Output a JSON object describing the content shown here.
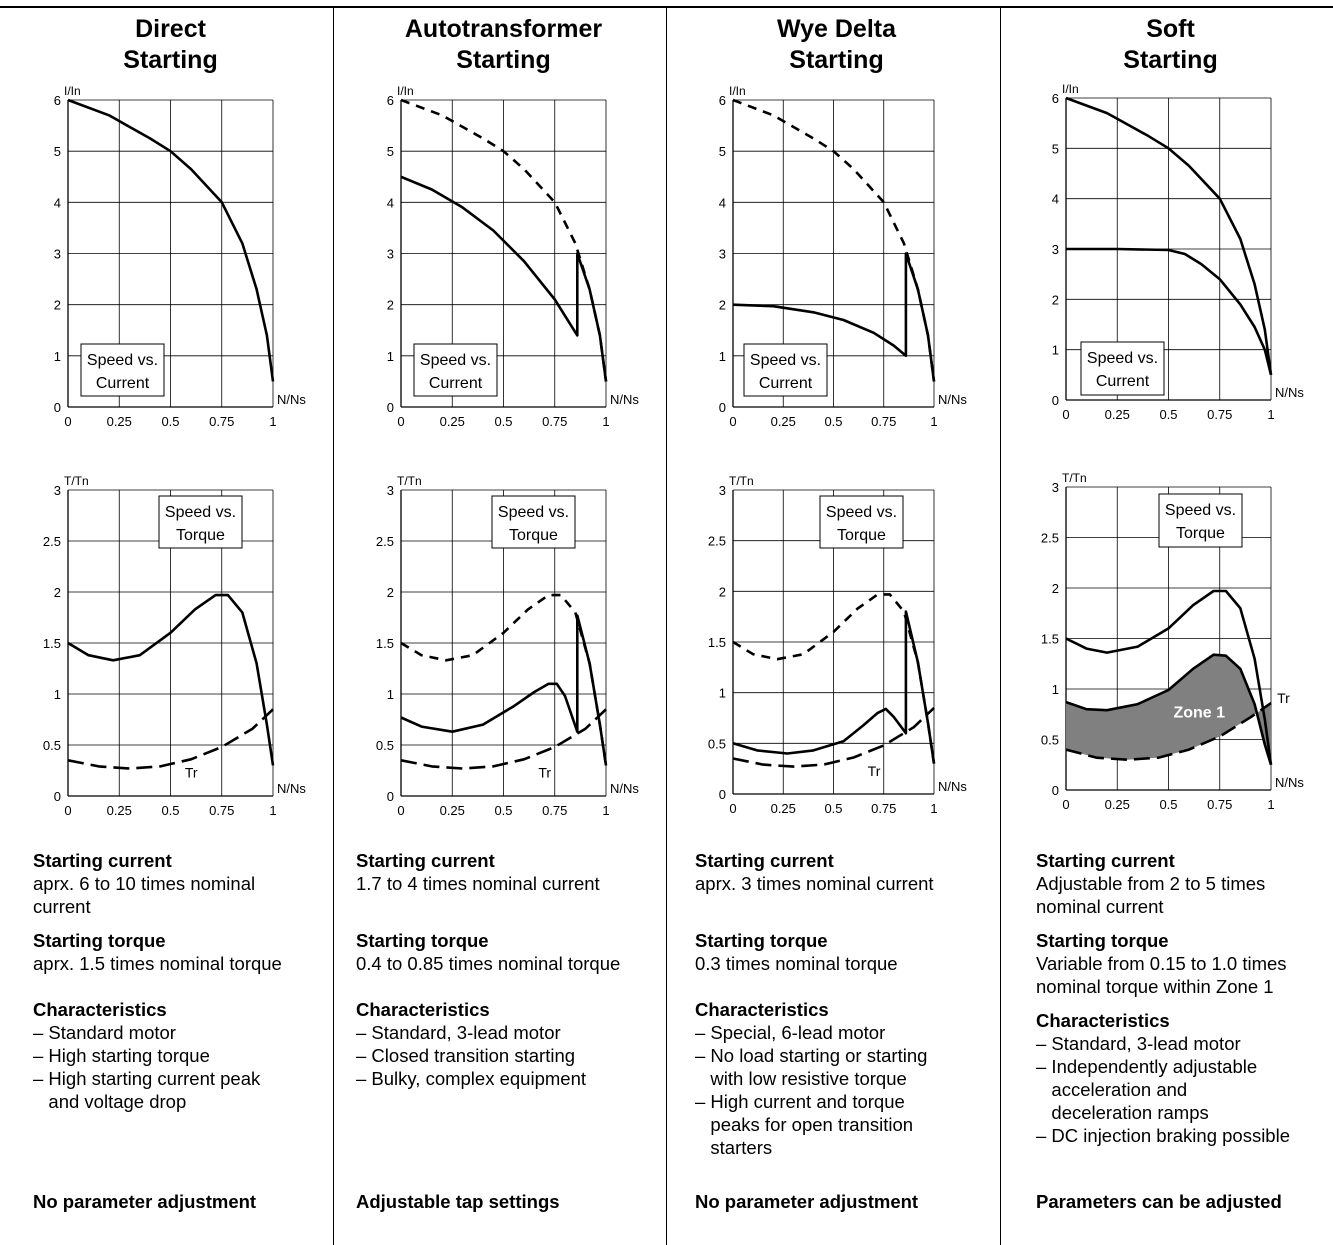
{
  "columns": [
    {
      "title": [
        "Direct",
        "Starting"
      ],
      "current": "Starting current",
      "current_text": [
        "aprx. 6 to 10 times nominal",
        "current"
      ],
      "torque": "Starting torque",
      "torque_text": [
        "aprx. 1.5 times nominal torque"
      ],
      "char": "Characteristics",
      "char_text": [
        "– Standard motor",
        "– High starting torque",
        "– High starting current peak",
        "   and voltage drop"
      ],
      "footer": "No parameter adjustment"
    },
    {
      "title": [
        "Autotransformer",
        "Starting"
      ],
      "current": "Starting current",
      "current_text": [
        "1.7 to 4 times nominal current"
      ],
      "torque": "Starting torque",
      "torque_text": [
        "0.4 to 0.85 times nominal torque"
      ],
      "char": "Characteristics",
      "char_text": [
        "– Standard, 3-lead motor",
        "– Closed transition starting",
        "– Bulky, complex equipment"
      ],
      "footer": "Adjustable tap settings"
    },
    {
      "title": [
        "Wye Delta",
        "Starting"
      ],
      "current": "Starting current",
      "current_text": [
        "aprx. 3 times nominal current"
      ],
      "torque": "Starting torque",
      "torque_text": [
        "0.3 times nominal torque"
      ],
      "char": "Characteristics",
      "char_text": [
        "– Special, 6-lead motor",
        "– No load starting or starting",
        "   with low resistive torque",
        "– High current and torque",
        "   peaks for open transition",
        "   starters"
      ],
      "footer": "No parameter adjustment"
    },
    {
      "title": [
        "Soft",
        "Starting"
      ],
      "current": "Starting current",
      "current_text": [
        "Adjustable from 2 to 5 times",
        "nominal current"
      ],
      "torque": "Starting torque",
      "torque_text": [
        "Variable from 0.15 to 1.0 times",
        "nominal torque within Zone 1"
      ],
      "char": "Characteristics",
      "char_text": [
        "– Standard, 3-lead motor",
        "– Independently adjustable",
        "   acceleration and",
        "   deceleration ramps",
        "– DC injection braking possible"
      ],
      "footer": "Parameters can be adjusted"
    }
  ],
  "chart_data": [
    {
      "type": "line",
      "chart": "Direct - current",
      "ylabel": "I/In",
      "xlabel": "N/Ns",
      "box_label": [
        "Speed vs.",
        "Current"
      ],
      "xlim": [
        0,
        1
      ],
      "ylim": [
        0,
        6
      ],
      "xticks": [
        "0",
        "0.25",
        "0.5",
        "0.75",
        "1"
      ],
      "yticks": [
        "0",
        "1",
        "2",
        "3",
        "4",
        "5",
        "6"
      ],
      "series": [
        {
          "style": "solid",
          "x": [
            0,
            0.2,
            0.4,
            0.5,
            0.6,
            0.75,
            0.85,
            0.92,
            0.97,
            1.0
          ],
          "y": [
            6,
            5.7,
            5.25,
            5.0,
            4.65,
            4.0,
            3.2,
            2.3,
            1.4,
            0.5
          ]
        }
      ]
    },
    {
      "type": "line",
      "chart": "Direct - torque",
      "ylabel": "T/Tn",
      "xlabel": "N/Ns",
      "box_label": [
        "Speed vs.",
        "Torque"
      ],
      "xlim": [
        0,
        1
      ],
      "ylim": [
        0,
        3
      ],
      "xticks": [
        "0",
        "0.25",
        "0.5",
        "0.75",
        "1"
      ],
      "yticks": [
        "0",
        "0.5",
        "1",
        "1.5",
        "2",
        "2.5",
        "3"
      ],
      "annotations": [
        {
          "text": "Tr",
          "x": 0.57,
          "y": 0.18
        }
      ],
      "series": [
        {
          "style": "solid",
          "x": [
            0,
            0.1,
            0.22,
            0.35,
            0.5,
            0.62,
            0.72,
            0.78,
            0.85,
            0.92,
            0.97,
            1.0
          ],
          "y": [
            1.5,
            1.38,
            1.33,
            1.38,
            1.6,
            1.83,
            1.97,
            1.97,
            1.8,
            1.3,
            0.7,
            0.3
          ]
        },
        {
          "style": "longdash",
          "x": [
            0,
            0.15,
            0.3,
            0.45,
            0.6,
            0.75,
            0.9,
            1.0
          ],
          "y": [
            0.35,
            0.29,
            0.27,
            0.29,
            0.36,
            0.48,
            0.66,
            0.85
          ]
        }
      ]
    },
    {
      "type": "line",
      "chart": "Autotransformer - current",
      "ylabel": "I/In",
      "xlabel": "N/Ns",
      "box_label": [
        "Speed vs.",
        "Current"
      ],
      "xlim": [
        0,
        1
      ],
      "ylim": [
        0,
        6
      ],
      "xticks": [
        "0",
        "0.25",
        "0.5",
        "0.75",
        "1"
      ],
      "yticks": [
        "0",
        "1",
        "2",
        "3",
        "4",
        "5",
        "6"
      ],
      "series": [
        {
          "style": "dashed",
          "x": [
            0,
            0.2,
            0.4,
            0.5,
            0.6,
            0.75,
            0.85,
            0.92,
            0.97,
            1.0
          ],
          "y": [
            6,
            5.7,
            5.25,
            5.0,
            4.65,
            4.0,
            3.2,
            2.3,
            1.4,
            0.5
          ]
        },
        {
          "style": "solid",
          "x": [
            0,
            0.15,
            0.3,
            0.45,
            0.6,
            0.75,
            0.86,
            0.86,
            0.92,
            0.97,
            1.0
          ],
          "y": [
            4.5,
            4.25,
            3.9,
            3.45,
            2.85,
            2.1,
            1.4,
            3.0,
            2.3,
            1.4,
            0.5
          ]
        }
      ]
    },
    {
      "type": "line",
      "chart": "Autotransformer - torque",
      "ylabel": "T/Tn",
      "xlabel": "N/Ns",
      "box_label": [
        "Speed vs.",
        "Torque"
      ],
      "xlim": [
        0,
        1
      ],
      "ylim": [
        0,
        3
      ],
      "xticks": [
        "0",
        "0.25",
        "0.5",
        "0.75",
        "1"
      ],
      "yticks": [
        "0",
        "0.5",
        "1",
        "1.5",
        "2",
        "2.5",
        "3"
      ],
      "annotations": [
        {
          "text": "Tr",
          "x": 0.67,
          "y": 0.18
        }
      ],
      "series": [
        {
          "style": "dashed",
          "x": [
            0,
            0.1,
            0.22,
            0.35,
            0.5,
            0.62,
            0.72,
            0.78,
            0.85,
            0.92,
            0.97,
            1.0
          ],
          "y": [
            1.5,
            1.38,
            1.33,
            1.38,
            1.6,
            1.83,
            1.97,
            1.97,
            1.8,
            1.3,
            0.7,
            0.3
          ]
        },
        {
          "style": "solid",
          "x": [
            0,
            0.1,
            0.25,
            0.4,
            0.55,
            0.65,
            0.72,
            0.76,
            0.8,
            0.86,
            0.86,
            0.92,
            0.97,
            1.0
          ],
          "y": [
            0.77,
            0.68,
            0.63,
            0.7,
            0.88,
            1.02,
            1.1,
            1.1,
            0.98,
            0.63,
            1.77,
            1.3,
            0.7,
            0.3
          ]
        },
        {
          "style": "longdash",
          "x": [
            0,
            0.15,
            0.3,
            0.45,
            0.6,
            0.75,
            0.9,
            1.0
          ],
          "y": [
            0.35,
            0.29,
            0.27,
            0.29,
            0.36,
            0.48,
            0.66,
            0.85
          ]
        }
      ]
    },
    {
      "type": "line",
      "chart": "Wye Delta - current",
      "ylabel": "I/In",
      "xlabel": "N/Ns",
      "box_label": [
        "Speed vs.",
        "Current"
      ],
      "xlim": [
        0,
        1
      ],
      "ylim": [
        0,
        6
      ],
      "xticks": [
        "0",
        "0.25",
        "0.5",
        "0.75",
        "1"
      ],
      "yticks": [
        "0",
        "1",
        "2",
        "3",
        "4",
        "5",
        "6"
      ],
      "series": [
        {
          "style": "dashed",
          "x": [
            0,
            0.2,
            0.4,
            0.5,
            0.6,
            0.75,
            0.85,
            0.92,
            0.97,
            1.0
          ],
          "y": [
            6,
            5.7,
            5.25,
            5.0,
            4.65,
            4.0,
            3.2,
            2.3,
            1.4,
            0.5
          ]
        },
        {
          "style": "solid",
          "x": [
            0,
            0.2,
            0.4,
            0.55,
            0.7,
            0.8,
            0.86,
            0.86,
            0.92,
            0.97,
            1.0
          ],
          "y": [
            2.0,
            1.97,
            1.85,
            1.7,
            1.45,
            1.2,
            1.0,
            3.0,
            2.3,
            1.4,
            0.5
          ]
        }
      ]
    },
    {
      "type": "line",
      "chart": "Wye Delta - torque",
      "ylabel": "T/Tn",
      "xlabel": "N/Ns",
      "box_label": [
        "Speed vs.",
        "Torque"
      ],
      "xlim": [
        0,
        1
      ],
      "ylim": [
        0,
        3
      ],
      "xticks": [
        "0",
        "0.25",
        "0.5",
        "0.75",
        "1"
      ],
      "yticks": [
        "0",
        "0.5",
        "1",
        "1.5",
        "2",
        "2.5",
        "3"
      ],
      "annotations": [
        {
          "text": "Tr",
          "x": 0.67,
          "y": 0.18
        }
      ],
      "series": [
        {
          "style": "dashed",
          "x": [
            0,
            0.1,
            0.22,
            0.35,
            0.5,
            0.62,
            0.72,
            0.78,
            0.85,
            0.92,
            0.97,
            1.0
          ],
          "y": [
            1.5,
            1.38,
            1.33,
            1.38,
            1.6,
            1.83,
            1.97,
            1.97,
            1.8,
            1.3,
            0.7,
            0.3
          ]
        },
        {
          "style": "solid",
          "x": [
            0,
            0.12,
            0.27,
            0.4,
            0.55,
            0.65,
            0.72,
            0.76,
            0.8,
            0.86,
            0.86,
            0.92,
            0.97,
            1.0
          ],
          "y": [
            0.5,
            0.43,
            0.4,
            0.43,
            0.52,
            0.68,
            0.8,
            0.84,
            0.76,
            0.6,
            1.8,
            1.3,
            0.7,
            0.3
          ]
        },
        {
          "style": "longdash",
          "x": [
            0,
            0.15,
            0.3,
            0.45,
            0.6,
            0.75,
            0.9,
            1.0
          ],
          "y": [
            0.35,
            0.29,
            0.27,
            0.29,
            0.36,
            0.48,
            0.66,
            0.85
          ]
        }
      ]
    },
    {
      "type": "line",
      "chart": "Soft - current",
      "ylabel": "I/In",
      "xlabel": "N/Ns",
      "box_label": [
        "Speed vs.",
        "Current"
      ],
      "xlim": [
        0,
        1
      ],
      "ylim": [
        0,
        6
      ],
      "xticks": [
        "0",
        "0.25",
        "0.5",
        "0.75",
        "1"
      ],
      "yticks": [
        "0",
        "1",
        "2",
        "3",
        "4",
        "5",
        "6"
      ],
      "series": [
        {
          "style": "solid",
          "x": [
            0,
            0.2,
            0.4,
            0.5,
            0.6,
            0.75,
            0.85,
            0.92,
            0.97,
            1.0
          ],
          "y": [
            6,
            5.7,
            5.25,
            5.0,
            4.65,
            4.0,
            3.2,
            2.3,
            1.4,
            0.5
          ]
        },
        {
          "style": "solid",
          "x": [
            0,
            0.25,
            0.5,
            0.58,
            0.66,
            0.75,
            0.85,
            0.92,
            0.97,
            1.0
          ],
          "y": [
            3.0,
            3.0,
            2.98,
            2.9,
            2.7,
            2.4,
            1.9,
            1.45,
            1.0,
            0.5
          ]
        }
      ]
    },
    {
      "type": "area",
      "chart": "Soft - torque",
      "ylabel": "T/Tn",
      "xlabel": "N/Ns",
      "box_label": [
        "Speed vs.",
        "Torque"
      ],
      "xlim": [
        0,
        1
      ],
      "ylim": [
        0,
        3
      ],
      "xticks": [
        "0",
        "0.25",
        "0.5",
        "0.75",
        "1"
      ],
      "yticks": [
        "0",
        "0.5",
        "1",
        "1.5",
        "2",
        "2.5",
        "3"
      ],
      "annotations": [
        {
          "text": "Tr",
          "x": 1.03,
          "y": 0.86
        },
        {
          "text": "Zone 1",
          "x": 0.65,
          "y": 0.72
        }
      ],
      "zone_color": "#808080",
      "series": [
        {
          "style": "solid",
          "x": [
            0,
            0.1,
            0.2,
            0.35,
            0.5,
            0.62,
            0.72,
            0.78,
            0.85,
            0.92,
            0.97,
            1.0
          ],
          "y": [
            1.5,
            1.4,
            1.36,
            1.42,
            1.6,
            1.83,
            1.97,
            1.97,
            1.8,
            1.3,
            0.7,
            0.25
          ]
        },
        {
          "style": "solid",
          "x": [
            0,
            0.1,
            0.2,
            0.35,
            0.5,
            0.62,
            0.72,
            0.78,
            0.85,
            0.92,
            0.97,
            1.0
          ],
          "y": [
            0.87,
            0.8,
            0.79,
            0.85,
            0.99,
            1.2,
            1.34,
            1.33,
            1.2,
            0.85,
            0.45,
            0.25
          ]
        },
        {
          "style": "longdash",
          "x": [
            0,
            0.15,
            0.3,
            0.45,
            0.6,
            0.75,
            0.9,
            1.0
          ],
          "y": [
            0.4,
            0.32,
            0.3,
            0.32,
            0.4,
            0.53,
            0.72,
            0.86
          ]
        }
      ]
    }
  ]
}
